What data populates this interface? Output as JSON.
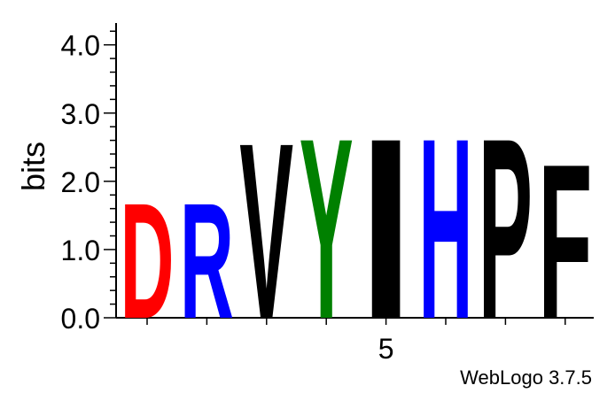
{
  "chart_data": {
    "type": "sequence-logo",
    "ylabel": "bits",
    "ylim": [
      0,
      4.32
    ],
    "y_ticks": [
      {
        "value": 0,
        "label": "0.0"
      },
      {
        "value": 1,
        "label": "1.0"
      },
      {
        "value": 2,
        "label": "2.0"
      },
      {
        "value": 3,
        "label": "3.0"
      },
      {
        "value": 4,
        "label": "4.0"
      }
    ],
    "y_minor_step": 0.2,
    "x_labels": [
      {
        "position": 5,
        "label": "5"
      }
    ],
    "positions": [
      {
        "position": 1,
        "letters": [
          {
            "letter": "D",
            "bits": 1.74,
            "color": "#ff0000"
          }
        ]
      },
      {
        "position": 2,
        "letters": [
          {
            "letter": "R",
            "bits": 1.74,
            "color": "#0000ff"
          }
        ]
      },
      {
        "position": 3,
        "letters": [
          {
            "letter": "V",
            "bits": 2.65,
            "color": "#000000"
          }
        ]
      },
      {
        "position": 4,
        "letters": [
          {
            "letter": "Y",
            "bits": 2.72,
            "color": "#008000"
          }
        ]
      },
      {
        "position": 5,
        "letters": [
          {
            "letter": "I",
            "bits": 2.72,
            "color": "#000000"
          }
        ]
      },
      {
        "position": 6,
        "letters": [
          {
            "letter": "H",
            "bits": 2.72,
            "color": "#0000ff"
          }
        ]
      },
      {
        "position": 7,
        "letters": [
          {
            "letter": "P",
            "bits": 2.72,
            "color": "#000000"
          }
        ]
      },
      {
        "position": 8,
        "letters": [
          {
            "letter": "F",
            "bits": 2.33,
            "color": "#000000"
          }
        ]
      }
    ]
  },
  "credit": "WebLogo 3.7.5"
}
